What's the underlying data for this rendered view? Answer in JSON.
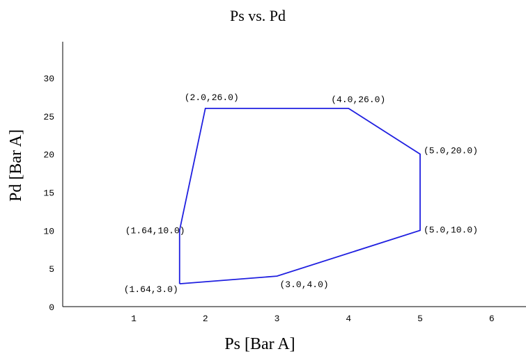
{
  "chart_data": {
    "type": "line",
    "title": "Ps vs. Pd",
    "xlabel": "Ps [Bar A]",
    "ylabel": "Pd [Bar A]",
    "xlim": [
      0,
      6.4
    ],
    "ylim": [
      0,
      35
    ],
    "x_ticks": [
      1,
      2,
      3,
      4,
      5,
      6
    ],
    "y_ticks": [
      0,
      5,
      10,
      15,
      20,
      25,
      30
    ],
    "grid": false,
    "series": [
      {
        "color": "#1f1fe0",
        "points": [
          {
            "x": 1.64,
            "y": 3.0,
            "label": "(1.64,3.0)"
          },
          {
            "x": 3.0,
            "y": 4.0,
            "label": "(3.0,4.0)"
          },
          {
            "x": 5.0,
            "y": 10.0,
            "label": "(5.0,10.0)"
          },
          {
            "x": 5.0,
            "y": 20.0,
            "label": "(5.0,20.0)"
          },
          {
            "x": 4.0,
            "y": 26.0,
            "label": "(4.0,26.0)"
          },
          {
            "x": 2.0,
            "y": 26.0,
            "label": "(2.0,26.0)"
          },
          {
            "x": 1.64,
            "y": 10.0,
            "label": "(1.64,10.0)"
          },
          {
            "x": 1.64,
            "y": 3.0
          }
        ]
      }
    ]
  }
}
